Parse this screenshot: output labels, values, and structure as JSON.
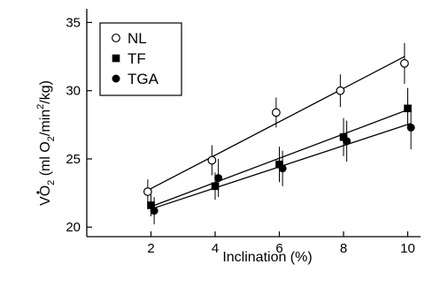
{
  "chart_data": {
    "type": "scatter",
    "title": "",
    "xlabel": "Inclination (%)",
    "ylabel_parts": [
      "V",
      "O",
      "2",
      " (ml O",
      "2",
      "/min",
      "2",
      "/kg)"
    ],
    "xlim": [
      0,
      10.4
    ],
    "ylim": [
      19.3,
      36
    ],
    "x_ticks": [
      2,
      4,
      6,
      8,
      10
    ],
    "y_ticks": [
      20,
      25,
      30,
      35
    ],
    "grid": false,
    "legend_position": "top-left",
    "series": [
      {
        "name": "NL",
        "marker": "open-circle",
        "x": [
          1.9,
          3.9,
          5.9,
          7.9,
          9.9
        ],
        "y": [
          22.6,
          24.9,
          28.4,
          30.0,
          32.0
        ],
        "err": [
          0.9,
          1.1,
          1.1,
          1.2,
          1.5
        ],
        "fit": [
          22.7,
          32.5
        ]
      },
      {
        "name": "TF",
        "marker": "filled-square",
        "x": [
          2.0,
          4.0,
          6.0,
          8.0,
          10.0
        ],
        "y": [
          21.6,
          23.0,
          24.6,
          26.6,
          28.7
        ],
        "err": [
          0.8,
          1.0,
          1.3,
          1.4,
          1.5
        ],
        "fit": [
          21.5,
          28.6
        ]
      },
      {
        "name": "TGA",
        "marker": "filled-circle",
        "x": [
          2.1,
          4.1,
          6.1,
          8.1,
          10.1
        ],
        "y": [
          21.2,
          23.6,
          24.3,
          26.3,
          27.3
        ],
        "err": [
          1.0,
          1.4,
          1.3,
          1.5,
          1.6
        ],
        "fit": [
          21.4,
          27.6
        ]
      }
    ],
    "colors": {
      "ink": "#000000",
      "background": "#ffffff"
    }
  }
}
